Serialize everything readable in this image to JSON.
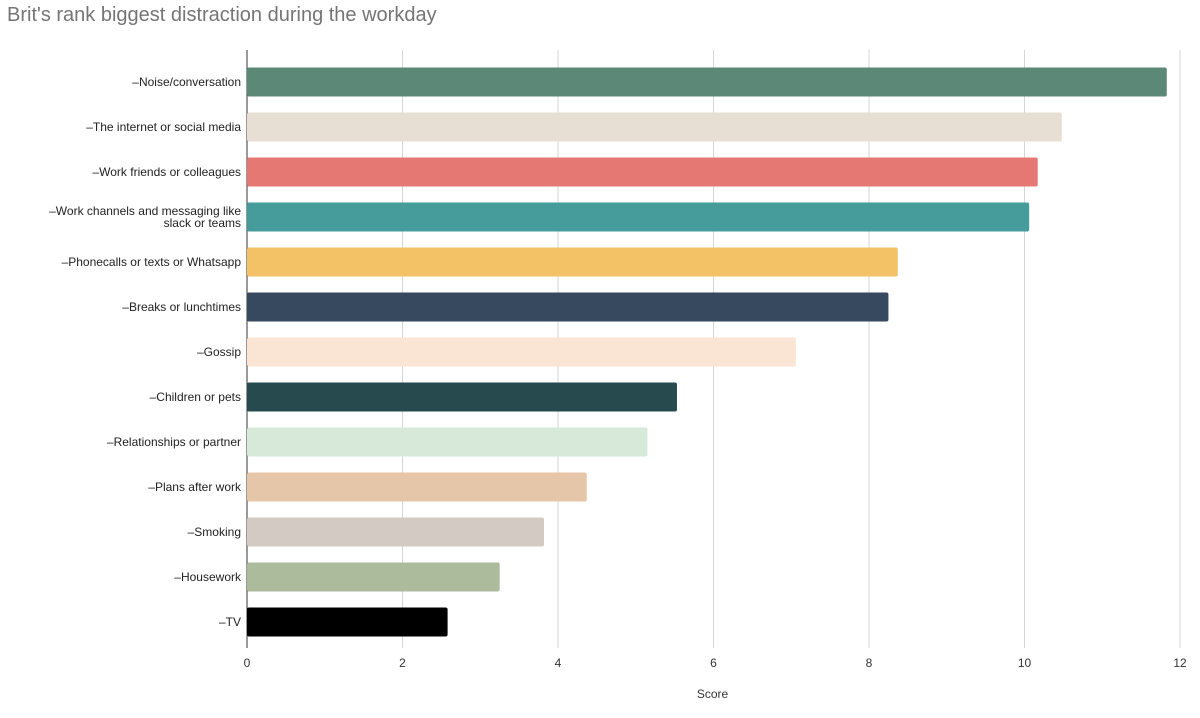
{
  "chart_title": "Brit's rank biggest distraction during the workday",
  "chart_data": {
    "type": "bar",
    "orientation": "horizontal",
    "title": "Brit's rank biggest distraction during the workday",
    "xlabel": "Score",
    "ylabel": "",
    "xlim": [
      0,
      12
    ],
    "x_ticks": [
      "0",
      "2",
      "4",
      "6",
      "8",
      "10",
      "12"
    ],
    "grid": true,
    "legend": "none",
    "categories": [
      "–Noise/conversation",
      "–The internet or social media",
      "–Work friends or colleagues",
      "–Work channels and messaging like slack or teams",
      "–Phonecalls or texts or Whatsapp",
      "–Breaks or lunchtimes",
      "–Gossip",
      "–Children or pets",
      "–Relationships or partner",
      "–Plans after work",
      "–Smoking",
      "–Housework",
      "–TV"
    ],
    "values": [
      11.83,
      10.48,
      10.17,
      10.06,
      8.37,
      8.25,
      7.06,
      5.53,
      5.15,
      4.37,
      3.82,
      3.25,
      2.58
    ],
    "colors": [
      "#5c8878",
      "#e7dfd3",
      "#e67873",
      "#469b9b",
      "#f4c266",
      "#36495e",
      "#fae5d4",
      "#264a4e",
      "#d7e9d8",
      "#e5c6a8",
      "#d3cbc3",
      "#acbb9c",
      "#000000"
    ]
  }
}
